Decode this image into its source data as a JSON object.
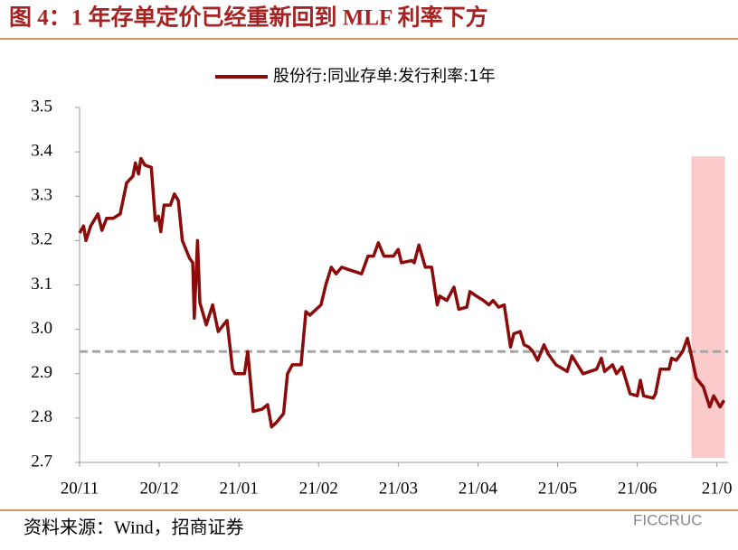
{
  "chart_data": {
    "type": "line",
    "title": "图 4：1 年存单定价已经重新回到 MLF 利率下方",
    "source": "资料来源：Wind，招商证券",
    "watermark": "FICCRUC",
    "x": [
      0,
      0.05,
      0.08,
      0.14,
      0.23,
      0.28,
      0.34,
      0.42,
      0.51,
      0.59,
      0.67,
      0.7,
      0.74,
      0.77,
      0.82,
      0.9,
      0.95,
      0.99,
      1.02,
      1.06,
      1.14,
      1.19,
      1.24,
      1.29,
      1.38,
      1.42,
      1.44,
      1.48,
      1.51,
      1.59,
      1.67,
      1.74,
      1.85,
      1.92,
      1.95,
      2.07,
      2.11,
      2.18,
      2.29,
      2.36,
      2.41,
      2.47,
      2.56,
      2.61,
      2.67,
      2.78,
      2.84,
      2.89,
      2.97,
      3.03,
      3.09,
      3.16,
      3.22,
      3.29,
      3.37,
      3.54,
      3.62,
      3.69,
      3.75,
      3.82,
      3.94,
      4.0,
      4.04,
      4.17,
      4.2,
      4.26,
      4.34,
      4.42,
      4.49,
      4.52,
      4.61,
      4.7,
      4.76,
      4.86,
      4.9,
      4.98,
      5.07,
      5.14,
      5.19,
      5.26,
      5.33,
      5.41,
      5.45,
      5.53,
      5.58,
      5.64,
      5.69,
      5.75,
      5.83,
      5.88,
      5.98,
      6.12,
      6.18,
      6.32,
      6.49,
      6.55,
      6.59,
      6.69,
      6.74,
      6.81,
      6.91,
      7.0,
      7.04,
      7.08,
      7.2,
      7.23,
      7.29,
      7.4,
      7.43,
      7.49,
      7.57,
      7.63,
      7.68,
      7.74,
      7.83,
      7.91,
      7.96,
      8.04,
      8.09
    ],
    "series": [
      {
        "name": "股份行:同业存单:发行利率:1年",
        "color": "#8b0a0a",
        "values": [
          3.217,
          3.233,
          3.2,
          3.233,
          3.26,
          3.223,
          3.25,
          3.25,
          3.26,
          3.33,
          3.345,
          3.375,
          3.35,
          3.385,
          3.37,
          3.365,
          3.245,
          3.255,
          3.22,
          3.28,
          3.28,
          3.305,
          3.29,
          3.2,
          3.16,
          3.15,
          3.025,
          3.2,
          3.06,
          3.01,
          3.055,
          2.995,
          3.02,
          2.91,
          2.9,
          2.9,
          2.95,
          2.815,
          2.82,
          2.83,
          2.78,
          2.79,
          2.81,
          2.9,
          2.92,
          2.92,
          3.04,
          3.032,
          3.045,
          3.055,
          3.1,
          3.14,
          3.125,
          3.14,
          3.135,
          3.125,
          3.165,
          3.165,
          3.195,
          3.165,
          3.165,
          3.18,
          3.15,
          3.155,
          3.15,
          3.19,
          3.14,
          3.14,
          3.055,
          3.075,
          3.065,
          3.095,
          3.045,
          3.05,
          3.085,
          3.075,
          3.065,
          3.055,
          3.065,
          3.05,
          3.055,
          2.96,
          2.99,
          2.995,
          2.965,
          2.96,
          2.95,
          2.93,
          2.965,
          2.945,
          2.92,
          2.905,
          2.94,
          2.9,
          2.91,
          2.935,
          2.905,
          2.92,
          2.9,
          2.915,
          2.855,
          2.85,
          2.885,
          2.85,
          2.845,
          2.855,
          2.91,
          2.91,
          2.935,
          2.93,
          2.95,
          2.98,
          2.94,
          2.89,
          2.87,
          2.825,
          2.85,
          2.825,
          2.84
        ]
      }
    ],
    "reference_line": {
      "y": 2.95,
      "color": "#a6a6a6"
    },
    "highlight": {
      "x": [
        7.68,
        8.1
      ],
      "y": [
        2.71,
        3.39
      ],
      "color": "#fbcaca"
    },
    "xlim": [
      0,
      8.14
    ],
    "xticks": [
      {
        "value": 0,
        "label": "20/11"
      },
      {
        "value": 1,
        "label": "20/12"
      },
      {
        "value": 2,
        "label": "21/01"
      },
      {
        "value": 3,
        "label": "21/02"
      },
      {
        "value": 4,
        "label": "21/03"
      },
      {
        "value": 5,
        "label": "21/04"
      },
      {
        "value": 6,
        "label": "21/05"
      },
      {
        "value": 7,
        "label": "21/06"
      },
      {
        "value": 8,
        "label": "21/0"
      }
    ],
    "ylim": [
      2.7,
      3.5
    ],
    "yticks": [
      {
        "value": 2.7,
        "label": "2.7"
      },
      {
        "value": 2.8,
        "label": "2.8"
      },
      {
        "value": 2.9,
        "label": "2.9"
      },
      {
        "value": 3.0,
        "label": "3.0"
      },
      {
        "value": 3.1,
        "label": "3.1"
      },
      {
        "value": 3.2,
        "label": "3.2"
      },
      {
        "value": 3.3,
        "label": "3.3"
      },
      {
        "value": 3.4,
        "label": "3.4"
      },
      {
        "value": 3.5,
        "label": "3.5"
      }
    ],
    "legend": "top"
  }
}
